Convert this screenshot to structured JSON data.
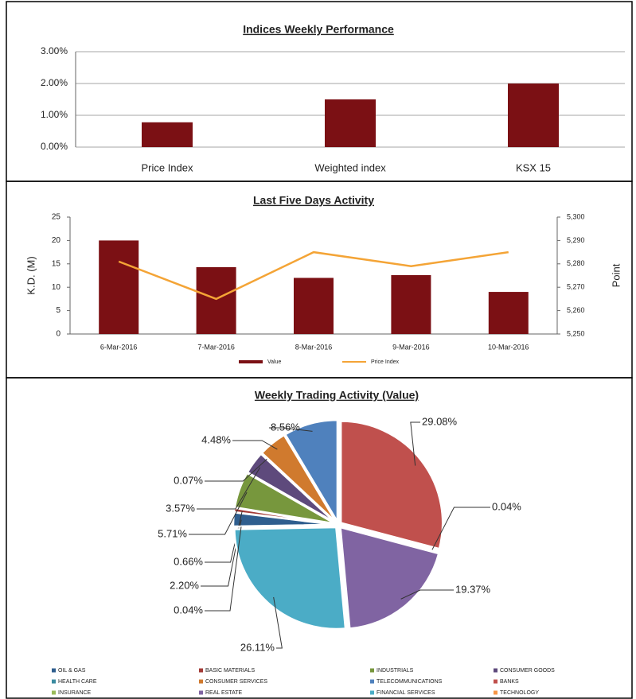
{
  "chart_data": [
    {
      "type": "bar",
      "title": "Indices Weekly Performance",
      "categories": [
        "Price Index",
        "Weighted index",
        "KSX 15"
      ],
      "values": [
        0.78,
        1.5,
        2.0
      ],
      "color": "#7b1014",
      "ylim": [
        0,
        3
      ],
      "yticks": [
        {
          "value": 0,
          "label": "0.00%"
        },
        {
          "value": 1,
          "label": "1.00%"
        },
        {
          "value": 2,
          "label": "2.00%"
        },
        {
          "value": 3,
          "label": "3.00%"
        }
      ],
      "grid": true
    },
    {
      "type": "bar_line",
      "title": "Last Five Days Activity",
      "categories": [
        "6-Mar-2016",
        "7-Mar-2016",
        "8-Mar-2016",
        "9-Mar-2016",
        "10-Mar-2016"
      ],
      "y_label": "K.D. (M)",
      "y2_label": "Point",
      "series": [
        {
          "name": "Value",
          "color": "#7b1014",
          "values": [
            20,
            14.3,
            12,
            12.6,
            9
          ]
        },
        {
          "name": "Price Index",
          "color": "#f4a436",
          "axis": "y2",
          "values": [
            5281,
            5265,
            5285,
            5279,
            5285
          ]
        }
      ],
      "ylim": [
        0,
        25
      ],
      "yticks": [
        0,
        5,
        10,
        15,
        20,
        25
      ],
      "y2lim": [
        5250,
        5300
      ],
      "y2ticks": [
        {
          "value": 5250,
          "label": "5,250"
        },
        {
          "value": 5260,
          "label": "5,260"
        },
        {
          "value": 5270,
          "label": "5,270"
        },
        {
          "value": 5280,
          "label": "5,280"
        },
        {
          "value": 5290,
          "label": "5,290"
        },
        {
          "value": 5300,
          "label": "5,300"
        }
      ],
      "grid": false,
      "legend": "bottom"
    },
    {
      "type": "pie",
      "title": "Weekly Trading Activity (Value)",
      "categories": [
        "OIL & GAS",
        "BASIC MATERIALS",
        "INDUSTRIALS",
        "CONSUMER GOODS",
        "HEALTH CARE",
        "CONSUMER SERVICES",
        "TELECOMMUNICATIONS",
        "BANKS",
        "INSURANCE",
        "REAL ESTATE",
        "FINANCIAL SERVICES",
        "TECHNOLOGY"
      ],
      "values": [
        2.2,
        0.66,
        5.71,
        3.57,
        0.07,
        4.48,
        8.56,
        29.08,
        0.04,
        19.37,
        26.11,
        0.04
      ],
      "value_labels": [
        "2.20%",
        "0.66%",
        "5.71%",
        "3.57%",
        "0.07%",
        "4.48%",
        "8.56%",
        "29.08%",
        "0.04%",
        "19.37%",
        "26.11%",
        "0.04%"
      ],
      "colors": [
        "#2f5e8e",
        "#a33a36",
        "#77973d",
        "#5e4a7c",
        "#3b8ba0",
        "#d07a2e",
        "#4f81bd",
        "#c0504d",
        "#9bbb59",
        "#8064a2",
        "#4bacc6",
        "#f79646"
      ],
      "legend": "bottom"
    }
  ]
}
